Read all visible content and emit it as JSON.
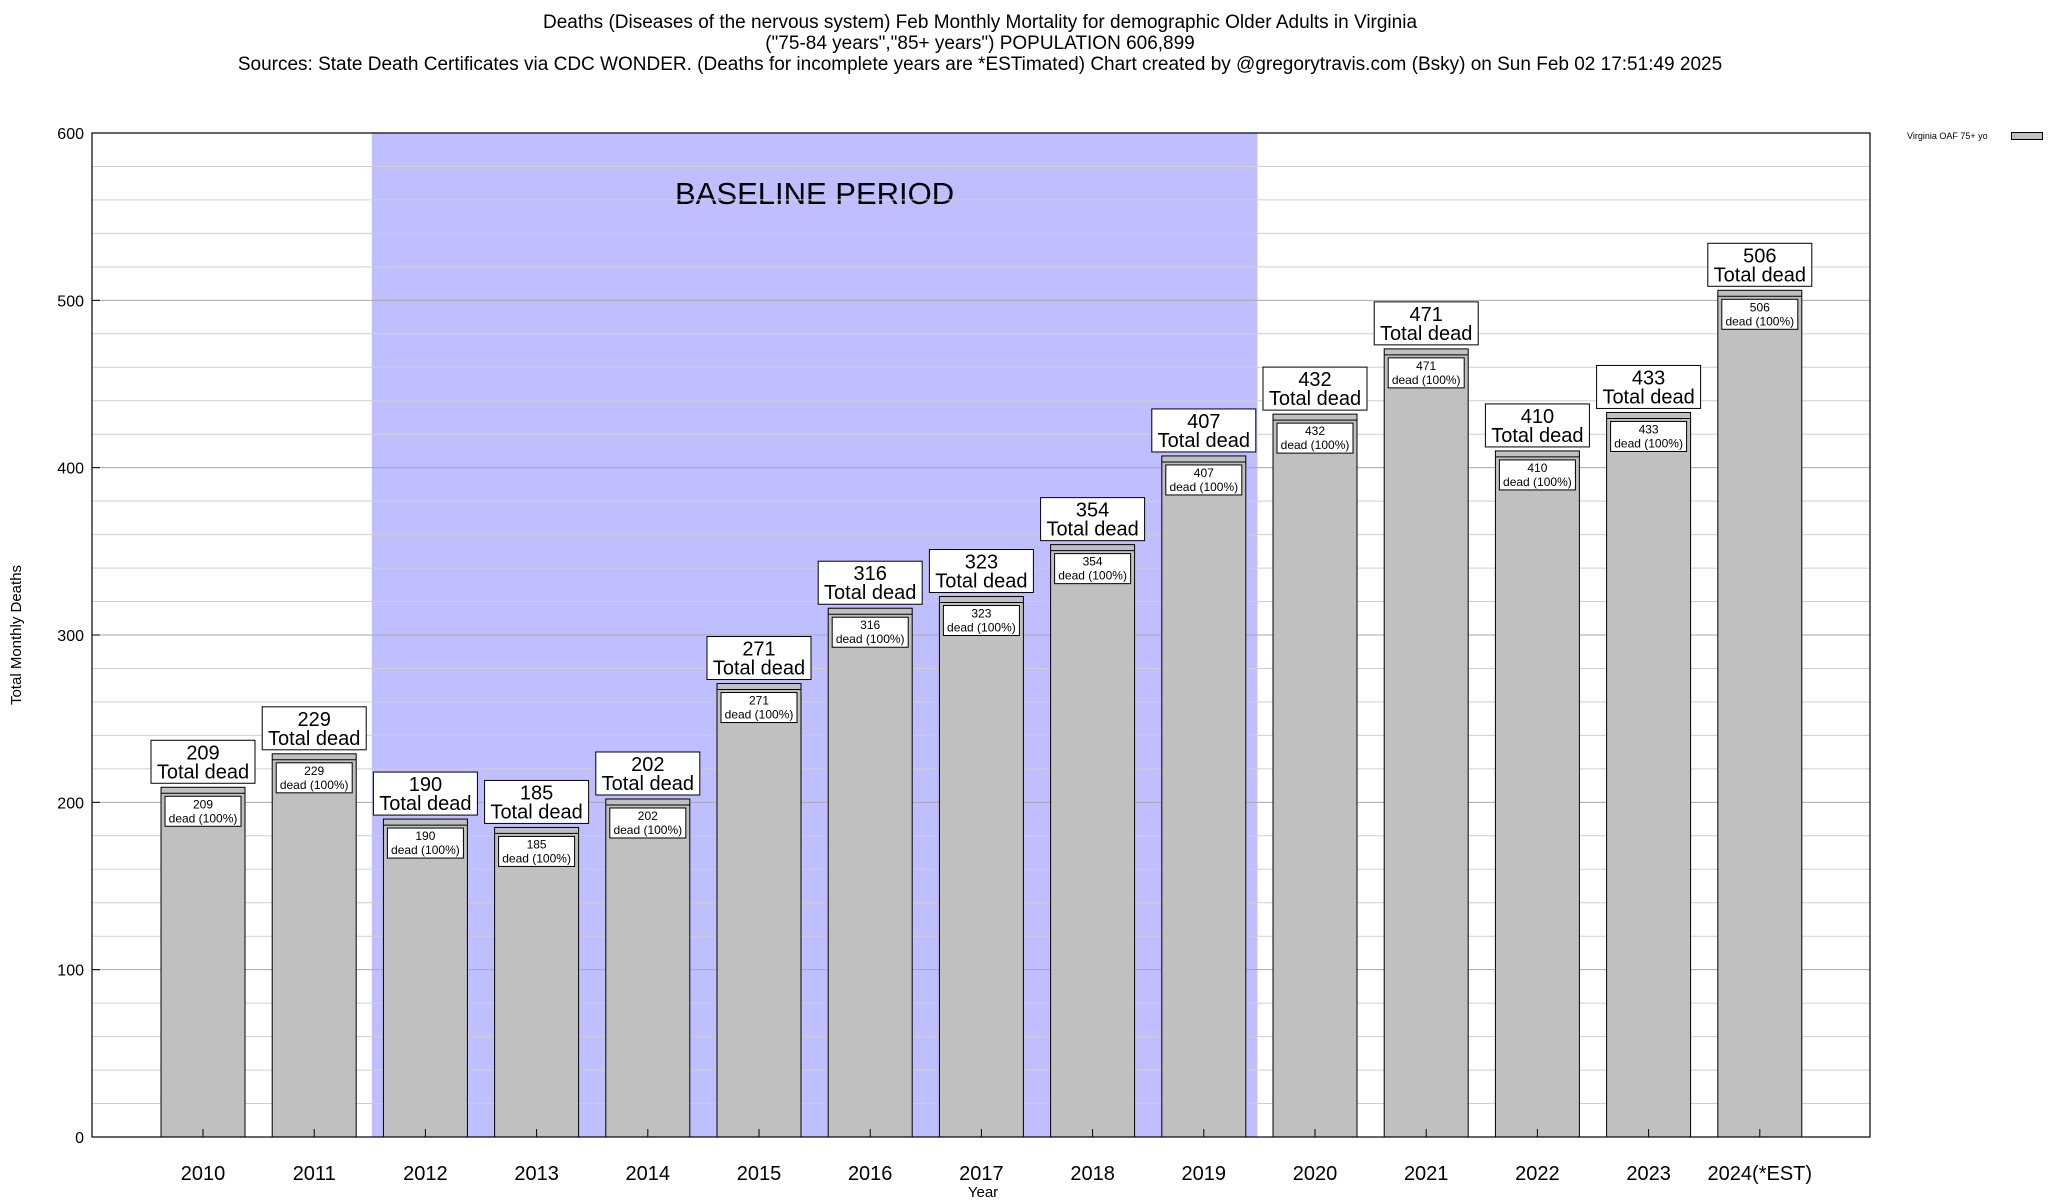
{
  "title": {
    "line1": "Deaths (Diseases of the nervous system) Feb Monthly Mortality for demographic Older Adults in Virginia",
    "line2": "(\"75-84 years\",\"85+ years\") POPULATION 606,899",
    "line3": "Sources: State Death Certificates via CDC WONDER. (Deaths for incomplete years are *ESTimated)                Chart created by @gregorytravis.com (Bsky) on Sun Feb 02 17:51:49 2025"
  },
  "legend": {
    "label": "Virginia OAF 75+ yo",
    "swatch_color": "#c0c0c0"
  },
  "chart_data": {
    "type": "bar",
    "xlabel": "Year",
    "ylabel": "Total Monthly Deaths",
    "ylim": [
      0,
      600
    ],
    "y_ticks": [
      0,
      100,
      200,
      300,
      400,
      500,
      600
    ],
    "grid": true,
    "legend_position": "top-right",
    "categories": [
      "2010",
      "2011",
      "2012",
      "2013",
      "2014",
      "2015",
      "2016",
      "2017",
      "2018",
      "2019",
      "2020",
      "2021",
      "2022",
      "2023",
      "2024(*EST)"
    ],
    "series": [
      {
        "name": "Virginia OAF 75+ yo",
        "color": "#c0c0c0",
        "values": [
          209,
          229,
          190,
          185,
          202,
          271,
          316,
          323,
          354,
          407,
          432,
          471,
          410,
          433,
          506
        ]
      }
    ],
    "annotation_total_suffix": "Total dead",
    "annotation_inner_suffix": "dead (100%)",
    "baseline": {
      "label": "BASELINE PERIOD",
      "start_category": "2012",
      "end_category": "2019",
      "color": "#bfbfff"
    }
  }
}
